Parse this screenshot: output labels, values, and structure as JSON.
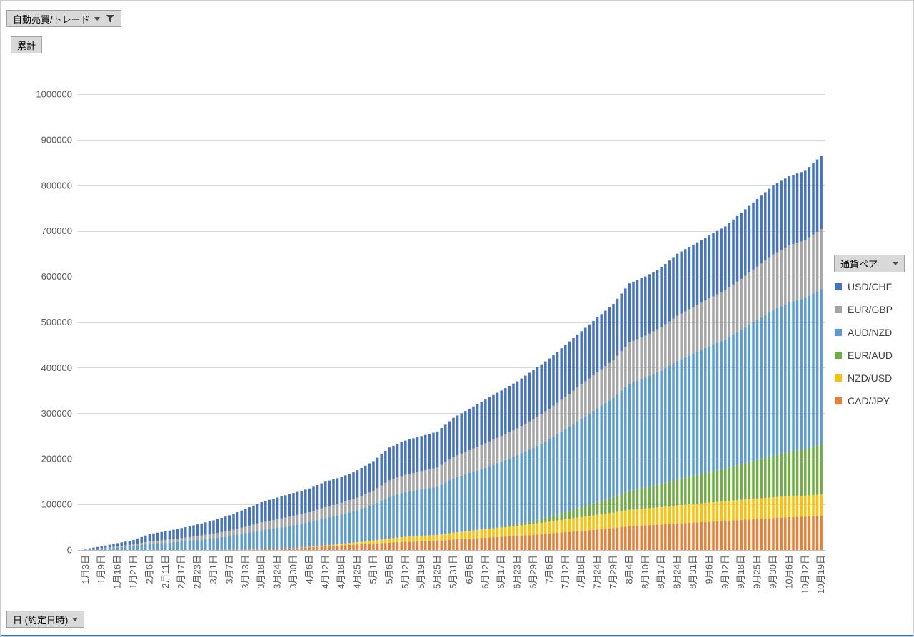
{
  "buttons": {
    "report_filter": {
      "label": "自動売買/トレード"
    },
    "value_field": {
      "label": "累計"
    },
    "axis_field": {
      "label": "日 (約定日時)"
    },
    "legend_field": {
      "label": "通貨ペア"
    }
  },
  "colors": {
    "axis_text": "#595959",
    "gridline": "#d9d9d9",
    "axis_line": "#bfbfbf",
    "button_bg": "#d9d9d9",
    "button_border": "#9f9f9f"
  },
  "chart_data": {
    "type": "bar",
    "stacked": true,
    "title": "",
    "xlabel": "日 (約定日時)",
    "ylabel": "累計",
    "ylim": [
      0,
      1000000
    ],
    "ytick_step": 100000,
    "grid": true,
    "legend_position": "right",
    "bars_between_ticks": 3,
    "x_tick_labels": [
      "1月3日",
      "1月9日",
      "1月16日",
      "1月21日",
      "2月6日",
      "2月11日",
      "2月17日",
      "2月23日",
      "3月1日",
      "3月7日",
      "3月13日",
      "3月18日",
      "3月24日",
      "3月30日",
      "4月6日",
      "4月12日",
      "4月18日",
      "4月25日",
      "5月1日",
      "5月6日",
      "5月12日",
      "5月19日",
      "5月25日",
      "5月31日",
      "6月6日",
      "6月12日",
      "6月17日",
      "6月23日",
      "6月29日",
      "7月6日",
      "7月12日",
      "7月18日",
      "7月24日",
      "7月29日",
      "8月4日",
      "8月10日",
      "8月17日",
      "8月24日",
      "8月31日",
      "9月6日",
      "9月12日",
      "9月18日",
      "9月25日",
      "9月30日",
      "10月6日",
      "10月12日",
      "10月19日"
    ],
    "series": [
      {
        "name": "CAD/JPY",
        "color": "#ED7D31",
        "values": [
          0,
          0,
          0,
          0,
          0,
          0,
          0,
          0,
          0,
          500,
          1000,
          1500,
          2500,
          4000,
          6000,
          8000,
          10000,
          12000,
          14000,
          16000,
          18000,
          19000,
          20000,
          23000,
          25000,
          27000,
          29000,
          31000,
          33000,
          36000,
          39000,
          42000,
          45000,
          48000,
          52000,
          54000,
          56000,
          58000,
          60000,
          62000,
          64000,
          66000,
          68000,
          70000,
          72000,
          73000,
          75000
        ]
      },
      {
        "name": "NZD/USD",
        "color": "#FFC000",
        "values": [
          0,
          0,
          0,
          0,
          0,
          0,
          0,
          0,
          0,
          0,
          0,
          0,
          0,
          0,
          1000,
          2000,
          3500,
          5000,
          7000,
          9000,
          11000,
          12000,
          13000,
          15000,
          17000,
          19000,
          20000,
          22000,
          24000,
          26000,
          28000,
          30000,
          32000,
          34000,
          36000,
          37000,
          38000,
          40000,
          41000,
          42000,
          43000,
          44000,
          45000,
          45500,
          46000,
          46000,
          47000
        ]
      },
      {
        "name": "EUR/AUD",
        "color": "#70AD47",
        "values": [
          0,
          0,
          0,
          0,
          0,
          0,
          0,
          0,
          0,
          0,
          0,
          0,
          0,
          0,
          0,
          0,
          0,
          0,
          0,
          0,
          0,
          0,
          0,
          0,
          0,
          0,
          2000,
          4000,
          7000,
          11000,
          16000,
          22000,
          28000,
          34000,
          42000,
          46000,
          51000,
          57000,
          62000,
          67000,
          72000,
          78000,
          85000,
          92000,
          98000,
          103000,
          110000
        ]
      },
      {
        "name": "AUD/NZD",
        "color": "#5B9BD5",
        "values": [
          1000,
          3000,
          6000,
          9000,
          14000,
          16000,
          19000,
          22000,
          26000,
          30000,
          36000,
          42000,
          46000,
          50000,
          54000,
          60000,
          64000,
          70000,
          78000,
          92000,
          98000,
          102000,
          106000,
          119000,
          127000,
          135000,
          143000,
          151000,
          160000,
          170000,
          182000,
          194000,
          206000,
          218000,
          235000,
          241000,
          249000,
          260000,
          268000,
          276000,
          283000,
          295000,
          307000,
          319000,
          327000,
          331000,
          340000
        ]
      },
      {
        "name": "EUR/GBP",
        "color": "#A5A5A5",
        "values": [
          300,
          1000,
          2000,
          3000,
          5000,
          6000,
          7000,
          8500,
          10000,
          12000,
          14000,
          17000,
          19000,
          21000,
          22000,
          24000,
          26000,
          28000,
          31000,
          36000,
          38000,
          40000,
          42000,
          47000,
          50000,
          53000,
          56000,
          59000,
          63000,
          67000,
          71000,
          75000,
          79000,
          83000,
          90000,
          92000,
          95000,
          99000,
          102000,
          105000,
          108000,
          112000,
          117000,
          122000,
          125000,
          127000,
          132000
        ]
      },
      {
        "name": "USD/CHF",
        "color": "#4472C4",
        "values": [
          1200,
          4000,
          7000,
          10000,
          16000,
          19000,
          22000,
          25500,
          29000,
          33500,
          39000,
          44500,
          47500,
          50000,
          52000,
          56000,
          56500,
          60000,
          65000,
          72000,
          75000,
          77000,
          79000,
          86000,
          91000,
          96000,
          100000,
          103000,
          108000,
          110000,
          114000,
          117000,
          120000,
          123000,
          130000,
          130000,
          131000,
          136000,
          137000,
          138000,
          140000,
          145000,
          148000,
          151500,
          152000,
          152000,
          161000
        ]
      }
    ],
    "legend": [
      {
        "label": "USD/CHF",
        "color": "#4472C4"
      },
      {
        "label": "EUR/GBP",
        "color": "#A5A5A5"
      },
      {
        "label": "AUD/NZD",
        "color": "#5B9BD5"
      },
      {
        "label": "EUR/AUD",
        "color": "#70AD47"
      },
      {
        "label": "NZD/USD",
        "color": "#FFC000"
      },
      {
        "label": "CAD/JPY",
        "color": "#ED7D31"
      }
    ]
  }
}
